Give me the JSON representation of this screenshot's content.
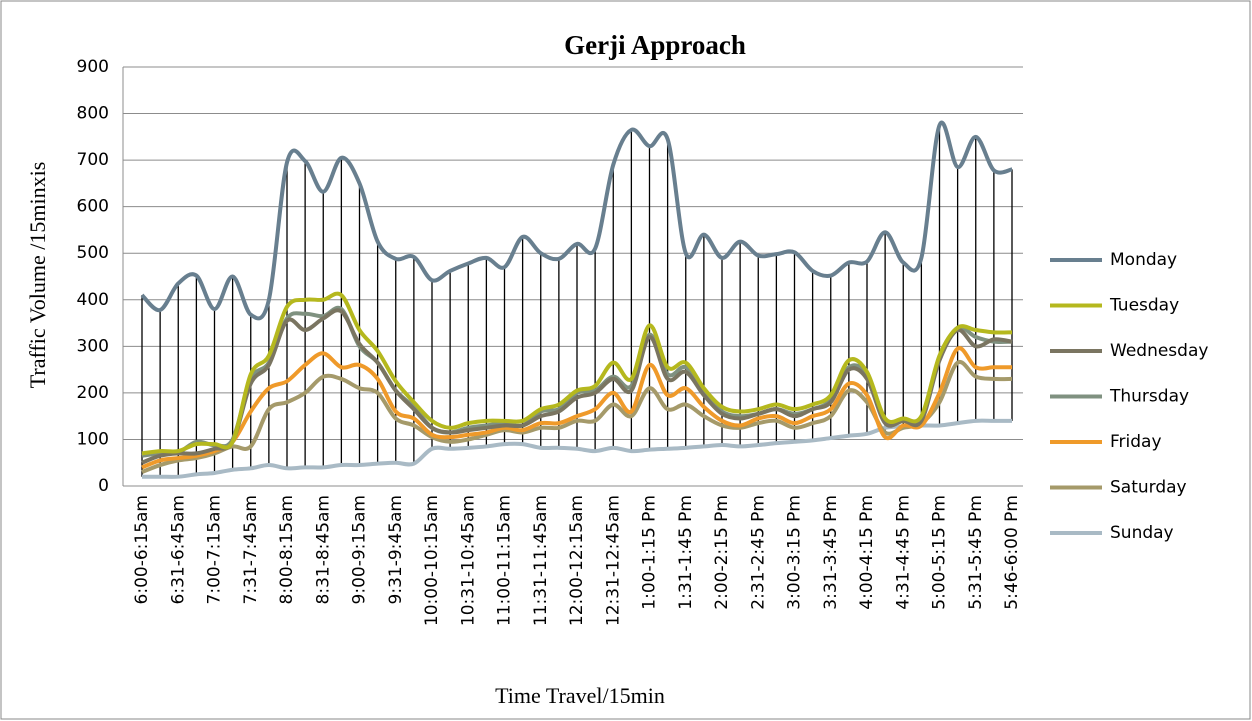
{
  "chart_data": {
    "type": "line",
    "title": "Gerji Approach",
    "y_label": "Traffic  Volume /15minxis",
    "x_label": "Time Travel/15min",
    "categories": [
      "6:00-6:15am",
      null,
      "6:31-6:45am",
      null,
      "7:00-7:15am",
      null,
      "7:31-7:45am",
      null,
      "8:00-8:15am",
      null,
      "8:31-8:45am",
      null,
      "9:00-9:15am",
      null,
      "9:31-9:45am",
      null,
      "10:00-10:15am",
      null,
      "10:31-10:45am",
      null,
      "11:00-11:15am",
      null,
      "11:31-11:45am",
      null,
      "12:00-12:15am",
      null,
      "12:31-12:45am",
      null,
      "1:00-1:15 Pm",
      null,
      "1:31-1:45 Pm",
      null,
      "2:00-2:15 Pm",
      null,
      "2:31-2:45 Pm",
      null,
      "3:00-3:15 Pm",
      null,
      "3:31-3:45 Pm",
      null,
      "4:00-4:15 Pm",
      null,
      "4:31-4:45 Pm",
      null,
      "5:00-5:15 Pm",
      null,
      "5:31-5:45 Pm",
      null,
      "5:46-6:00 Pm"
    ],
    "series": [
      {
        "name": "Monday",
        "color": "#687f8f",
        "values": [
          410,
          378,
          435,
          452,
          380,
          450,
          368,
          400,
          695,
          698,
          632,
          705,
          650,
          525,
          488,
          492,
          442,
          462,
          478,
          490,
          470,
          535,
          500,
          488,
          520,
          510,
          690,
          765,
          730,
          745,
          500,
          540,
          490,
          525,
          495,
          498,
          502,
          462,
          452,
          480,
          482,
          545,
          480,
          490,
          775,
          685,
          750,
          678,
          680
        ]
      },
      {
        "name": "Tuesday",
        "color": "#b5b81e",
        "values": [
          70,
          75,
          75,
          90,
          90,
          95,
          240,
          280,
          385,
          400,
          400,
          410,
          335,
          290,
          225,
          180,
          140,
          125,
          135,
          140,
          140,
          140,
          165,
          175,
          205,
          215,
          265,
          230,
          345,
          255,
          265,
          210,
          170,
          160,
          165,
          175,
          165,
          175,
          195,
          270,
          245,
          145,
          145,
          150,
          280,
          340,
          335,
          330,
          330
        ]
      },
      {
        "name": "Wednesday",
        "color": "#7a7561",
        "values": [
          50,
          65,
          70,
          70,
          80,
          95,
          220,
          260,
          355,
          335,
          360,
          375,
          305,
          265,
          205,
          165,
          125,
          115,
          120,
          125,
          130,
          130,
          150,
          160,
          190,
          200,
          230,
          205,
          320,
          230,
          245,
          195,
          155,
          145,
          155,
          165,
          150,
          165,
          180,
          250,
          230,
          135,
          140,
          140,
          270,
          335,
          300,
          315,
          310
        ]
      },
      {
        "name": "Thursday",
        "color": "#7f9180",
        "values": [
          65,
          70,
          72,
          95,
          88,
          100,
          230,
          265,
          360,
          370,
          365,
          380,
          300,
          265,
          205,
          170,
          125,
          115,
          125,
          130,
          135,
          130,
          160,
          165,
          200,
          205,
          235,
          215,
          325,
          240,
          255,
          200,
          160,
          150,
          155,
          165,
          155,
          165,
          185,
          255,
          240,
          140,
          140,
          145,
          275,
          340,
          320,
          310,
          310
        ]
      },
      {
        "name": "Friday",
        "color": "#ef9a2a",
        "values": [
          40,
          55,
          60,
          65,
          75,
          95,
          160,
          210,
          225,
          260,
          285,
          255,
          260,
          230,
          160,
          145,
          110,
          105,
          110,
          115,
          125,
          120,
          135,
          135,
          150,
          165,
          200,
          160,
          260,
          195,
          210,
          170,
          140,
          130,
          145,
          150,
          135,
          150,
          165,
          220,
          195,
          105,
          130,
          130,
          200,
          295,
          255,
          255,
          255
        ]
      },
      {
        "name": "Saturday",
        "color": "#a59a6a",
        "values": [
          30,
          45,
          55,
          60,
          70,
          85,
          85,
          165,
          180,
          200,
          235,
          230,
          210,
          200,
          145,
          130,
          105,
          95,
          100,
          110,
          120,
          115,
          125,
          125,
          140,
          140,
          175,
          150,
          210,
          165,
          175,
          150,
          130,
          125,
          135,
          140,
          125,
          135,
          150,
          205,
          180,
          115,
          125,
          135,
          180,
          265,
          235,
          230,
          230
        ]
      },
      {
        "name": "Sunday",
        "color": "#a9bac5",
        "values": [
          20,
          20,
          20,
          25,
          28,
          35,
          38,
          45,
          38,
          40,
          40,
          45,
          45,
          48,
          50,
          48,
          80,
          80,
          82,
          85,
          90,
          90,
          82,
          82,
          80,
          75,
          82,
          75,
          78,
          80,
          82,
          85,
          88,
          85,
          88,
          92,
          95,
          98,
          103,
          108,
          112,
          125,
          128,
          130,
          130,
          135,
          140,
          140,
          140
        ]
      }
    ],
    "ylim": [
      0,
      900
    ],
    "yticks": [
      0,
      100,
      200,
      300,
      400,
      500,
      600,
      700,
      800,
      900
    ],
    "grid": true,
    "high_low_lines": true,
    "legend": "right"
  }
}
